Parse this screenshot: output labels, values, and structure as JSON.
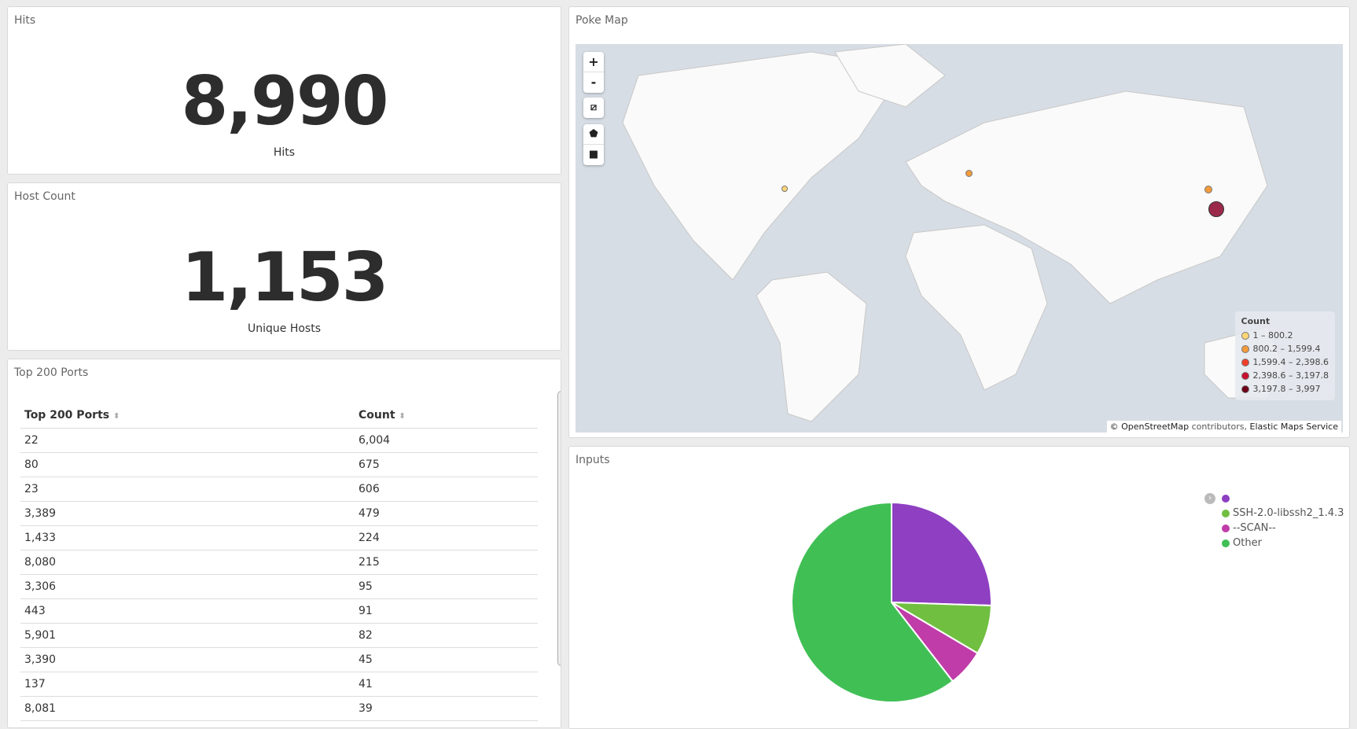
{
  "hits": {
    "title": "Hits",
    "value": "8,990",
    "label": "Hits"
  },
  "hosts": {
    "title": "Host Count",
    "value": "1,153",
    "label": "Unique Hosts"
  },
  "ports": {
    "title": "Top 200 Ports",
    "headers": [
      "Top 200 Ports",
      "Count"
    ],
    "rows": [
      [
        "22",
        "6,004"
      ],
      [
        "80",
        "675"
      ],
      [
        "23",
        "606"
      ],
      [
        "3,389",
        "479"
      ],
      [
        "1,433",
        "224"
      ],
      [
        "8,080",
        "215"
      ],
      [
        "3,306",
        "95"
      ],
      [
        "443",
        "91"
      ],
      [
        "5,901",
        "82"
      ],
      [
        "3,390",
        "45"
      ],
      [
        "137",
        "41"
      ],
      [
        "8,081",
        "39"
      ]
    ]
  },
  "map": {
    "title": "Poke Map",
    "zoom_in": "+",
    "zoom_out": "-",
    "legend": {
      "title": "Count",
      "items": [
        {
          "label": "1 – 800.2",
          "color": "#fdd576"
        },
        {
          "label": "800.2 – 1,599.4",
          "color": "#f39a3a"
        },
        {
          "label": "1,599.4 – 2,398.6",
          "color": "#f0402a"
        },
        {
          "label": "2,398.6 – 3,197.8",
          "color": "#c8102e"
        },
        {
          "label": "3,197.8 – 3,997",
          "color": "#6b0017"
        }
      ]
    },
    "attribution_link1": "© OpenStreetMap",
    "attribution_mid": " contributors, ",
    "attribution_link2": "Elastic Maps Service"
  },
  "inputs": {
    "title": "Inputs",
    "chart_data": {
      "type": "pie",
      "series": [
        {
          "name": "",
          "value": 25.5,
          "color": "#8e3fc2"
        },
        {
          "name": "SSH-2.0-libssh2_1.4.3",
          "value": 8,
          "color": "#70bf41"
        },
        {
          "name": "--SCAN--",
          "value": 6,
          "color": "#c03ca8"
        },
        {
          "name": "Other",
          "value": 60.5,
          "color": "#40bf55"
        }
      ]
    }
  }
}
